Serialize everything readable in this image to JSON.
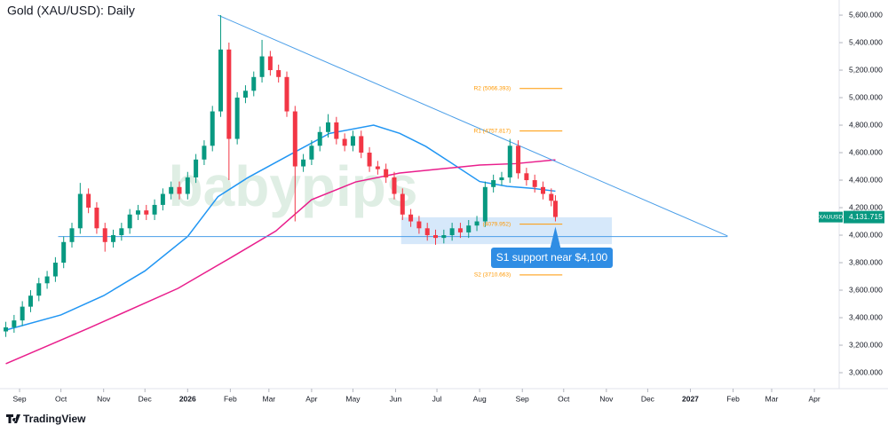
{
  "chart_data": {
    "type": "candlestick",
    "title": "Gold (XAU/USD): Daily",
    "watermark": "babypips",
    "brand": "TradingView",
    "up_color": "#089981",
    "down_color": "#f23645",
    "xlim": [
      -11,
      595
    ],
    "ylim": [
      2884,
      5710
    ],
    "xticks": [
      {
        "value": 0,
        "label": "Sep"
      },
      {
        "value": 30,
        "label": "Oct"
      },
      {
        "value": 61,
        "label": "Nov"
      },
      {
        "value": 91,
        "label": "Dec"
      },
      {
        "value": 122,
        "label": "2026"
      },
      {
        "value": 153,
        "label": "Feb"
      },
      {
        "value": 181,
        "label": "Mar"
      },
      {
        "value": 212,
        "label": "Apr"
      },
      {
        "value": 242,
        "label": "May"
      },
      {
        "value": 273,
        "label": "Jun"
      },
      {
        "value": 303,
        "label": "Jul"
      },
      {
        "value": 334,
        "label": "Aug"
      },
      {
        "value": 365,
        "label": "Sep"
      },
      {
        "value": 395,
        "label": "Oct"
      },
      {
        "value": 426,
        "label": "Nov"
      },
      {
        "value": 456,
        "label": "Dec"
      },
      {
        "value": 487,
        "label": "2027"
      },
      {
        "value": 518,
        "label": "Feb"
      },
      {
        "value": 546,
        "label": "Mar"
      },
      {
        "value": 577,
        "label": "Apr"
      }
    ],
    "yticks": [
      {
        "value": 3000,
        "label": "3,000.000"
      },
      {
        "value": 3200,
        "label": "3,200.000"
      },
      {
        "value": 3400,
        "label": "3,400.000"
      },
      {
        "value": 3600,
        "label": "3,600.000"
      },
      {
        "value": 3800,
        "label": "3,800.000"
      },
      {
        "value": 4000,
        "label": "4,000.000"
      },
      {
        "value": 4200,
        "label": "4,200.000"
      },
      {
        "value": 4400,
        "label": "4,400.000"
      },
      {
        "value": 4600,
        "label": "4,600.000"
      },
      {
        "value": 4800,
        "label": "4,800.000"
      },
      {
        "value": 5000,
        "label": "5,000.000"
      },
      {
        "value": 5200,
        "label": "5,200.000"
      },
      {
        "value": 5400,
        "label": "5,400.000"
      },
      {
        "value": 5600,
        "label": "5,600.000"
      }
    ],
    "x": [
      -10,
      -4,
      2,
      8,
      14,
      20,
      26,
      32,
      38,
      44,
      50,
      56,
      62,
      68,
      74,
      80,
      86,
      92,
      98,
      104,
      110,
      116,
      122,
      128,
      134,
      140,
      146,
      152,
      158,
      164,
      170,
      176,
      182,
      188,
      194,
      200,
      206,
      212,
      218,
      224,
      230,
      236,
      242,
      248,
      254,
      260,
      266,
      272,
      278,
      284,
      290,
      296,
      302,
      308,
      314,
      320,
      326,
      332,
      338,
      344,
      350,
      356,
      362,
      368,
      374,
      380,
      386,
      389
    ],
    "open": [
      3300,
      3330,
      3380,
      3480,
      3560,
      3650,
      3700,
      3800,
      3950,
      4050,
      4300,
      4200,
      4050,
      3950,
      4000,
      4050,
      4150,
      4180,
      4150,
      4220,
      4300,
      4350,
      4300,
      4420,
      4550,
      4650,
      4900,
      5350,
      4700,
      5000,
      5050,
      5150,
      5300,
      5200,
      5150,
      4900,
      4500,
      4550,
      4650,
      4750,
      4820,
      4700,
      4650,
      4720,
      4600,
      4500,
      4480,
      4420,
      4300,
      4150,
      4100,
      4050,
      4000,
      3980,
      4000,
      4050,
      4020,
      4070,
      4100,
      4350,
      4400,
      4420,
      4650,
      4450,
      4400,
      4350,
      4300,
      4250
    ],
    "high": [
      3370,
      3420,
      3520,
      3600,
      3690,
      3740,
      3840,
      3990,
      4090,
      4380,
      4340,
      4240,
      4090,
      4040,
      4090,
      4190,
      4220,
      4220,
      4260,
      4340,
      4390,
      4390,
      4460,
      4590,
      4690,
      4940,
      5600,
      5400,
      5040,
      5090,
      5190,
      5420,
      5340,
      5240,
      5190,
      4940,
      4590,
      4690,
      4790,
      4880,
      4860,
      4740,
      4760,
      4760,
      4640,
      4540,
      4520,
      4460,
      4340,
      4190,
      4140,
      4090,
      4040,
      4040,
      4090,
      4090,
      4110,
      4140,
      4390,
      4440,
      4460,
      4700,
      4690,
      4490,
      4440,
      4390,
      4340,
      4290
    ],
    "low": [
      3260,
      3290,
      3340,
      3440,
      3520,
      3610,
      3660,
      3760,
      3910,
      4010,
      4160,
      4010,
      3880,
      3910,
      3960,
      4010,
      4110,
      4110,
      4110,
      4180,
      4260,
      4260,
      4260,
      4380,
      4510,
      4610,
      4860,
      4400,
      4660,
      4960,
      5010,
      5110,
      5160,
      5110,
      4860,
      4100,
      4460,
      4510,
      4610,
      4710,
      4660,
      4610,
      4610,
      4560,
      4460,
      4440,
      4380,
      4260,
      4110,
      4060,
      4010,
      3960,
      3930,
      3940,
      3960,
      3980,
      3980,
      4030,
      4060,
      4310,
      4360,
      4380,
      4410,
      4360,
      4310,
      4260,
      4210,
      4100
    ],
    "close": [
      3330,
      3380,
      3480,
      3560,
      3650,
      3700,
      3800,
      3950,
      4050,
      4300,
      4200,
      4050,
      3950,
      4000,
      4050,
      4150,
      4180,
      4150,
      4220,
      4300,
      4350,
      4300,
      4420,
      4550,
      4650,
      4900,
      5350,
      4700,
      5000,
      5050,
      5150,
      5300,
      5200,
      5150,
      4900,
      4500,
      4550,
      4650,
      4750,
      4820,
      4700,
      4650,
      4720,
      4600,
      4500,
      4480,
      4420,
      4300,
      4150,
      4100,
      4050,
      4000,
      3980,
      4000,
      4050,
      4020,
      4070,
      4100,
      4350,
      4400,
      4420,
      4650,
      4450,
      4400,
      4350,
      4300,
      4250,
      4132
    ],
    "lines": [
      {
        "color": "#2196f3",
        "x": [
          -10,
          30,
          61,
          91,
          122,
          144,
          166,
          199,
          225,
          257,
          276,
          295,
          315,
          334,
          354,
          373,
          389
        ],
        "values": [
          3310,
          3420,
          3560,
          3740,
          3990,
          4280,
          4420,
          4600,
          4740,
          4800,
          4740,
          4645,
          4515,
          4390,
          4355,
          4340,
          4320
        ]
      },
      {
        "color": "#e91e8c",
        "x": [
          -10,
          50,
          115,
          154,
          186,
          212,
          244,
          276,
          308,
          334,
          360,
          389
        ],
        "values": [
          3065,
          3323,
          3613,
          3840,
          4030,
          4258,
          4387,
          4452,
          4484,
          4510,
          4520,
          4548
        ]
      }
    ],
    "trendlines": [
      {
        "color": "#4a9ee8",
        "x": [
          144,
          514
        ],
        "values": [
          5600,
          3994
        ]
      },
      {
        "color": "#4a9ee8",
        "x": [
          28,
          514
        ],
        "values": [
          3990,
          3990
        ]
      }
    ],
    "pivot_color": "#ff9800",
    "pivot_x": [
      363,
      394
    ],
    "pivots": [
      {
        "label": "R2 (5066.393)",
        "value": 5066.393
      },
      {
        "label": "R1 (4757.817)",
        "value": 4757.817
      },
      {
        "label": "(4079.952)",
        "value": 4079.952
      },
      {
        "label": "S2 (3710.663)",
        "value": 3710.663
      }
    ],
    "support_zone": {
      "x": [
        277,
        430
      ],
      "y": [
        3935,
        4130
      ]
    },
    "callout": {
      "text": "S1 support near $4,100",
      "x": 389,
      "value": 4100
    },
    "last_price": {
      "symbol": "XAUUSD",
      "label": "4,131.715",
      "value": 4131.715
    }
  }
}
